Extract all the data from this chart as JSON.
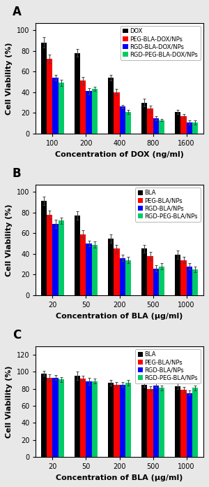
{
  "panel_A": {
    "letter": "A",
    "xlabel": "Concentration of DOX (ng/ml)",
    "ylabel": "Cell Viability (%)",
    "categories": [
      "100",
      "200",
      "400",
      "800",
      "1600"
    ],
    "ylim": [
      0,
      107
    ],
    "yticks": [
      0,
      20,
      40,
      60,
      80,
      100
    ],
    "legend_labels": [
      "DOX",
      "PEG-BLA-DOX/NPs",
      "RGD-BLA-DOX/NPs",
      "RGD-PEG-BLA-DOX/NPs"
    ],
    "colors": [
      "#000000",
      "#ff0000",
      "#0000ff",
      "#00cc66"
    ],
    "values": [
      [
        88,
        78,
        54,
        30,
        21
      ],
      [
        72,
        51,
        40,
        24,
        17
      ],
      [
        54,
        41,
        26,
        15,
        11
      ],
      [
        49,
        43,
        21,
        13,
        11
      ]
    ],
    "errors": [
      [
        5,
        4,
        3,
        4,
        2
      ],
      [
        4,
        4,
        3,
        3,
        2
      ],
      [
        3,
        3,
        2,
        2,
        2
      ],
      [
        3,
        2,
        2,
        1,
        2
      ]
    ]
  },
  "panel_B": {
    "letter": "B",
    "xlabel": "Concentration of BLA (μg/ml)",
    "ylabel": "Cell Viability (%)",
    "categories": [
      "20",
      "50",
      "200",
      "500",
      "1000"
    ],
    "ylim": [
      0,
      107
    ],
    "yticks": [
      0,
      20,
      40,
      60,
      80,
      100
    ],
    "legend_labels": [
      "BLA",
      "PEG-BLA/NPs",
      "RGD-BLA/NPs",
      "RGD-PEG-BLA/NPs"
    ],
    "colors": [
      "#000000",
      "#ff0000",
      "#0000ff",
      "#00cc66"
    ],
    "values": [
      [
        91,
        77,
        55,
        45,
        39
      ],
      [
        78,
        59,
        45,
        38,
        34
      ],
      [
        69,
        50,
        36,
        26,
        28
      ],
      [
        72,
        49,
        34,
        28,
        25
      ]
    ],
    "errors": [
      [
        4,
        4,
        4,
        4,
        4
      ],
      [
        4,
        4,
        4,
        4,
        3
      ],
      [
        4,
        3,
        3,
        3,
        3
      ],
      [
        3,
        3,
        3,
        3,
        3
      ]
    ]
  },
  "panel_C": {
    "letter": "C",
    "xlabel": "Concentration of BLA (μg/ml)",
    "ylabel": "Cell Viability (%)",
    "categories": [
      "20",
      "50",
      "200",
      "500",
      "1000"
    ],
    "ylim": [
      0,
      130
    ],
    "yticks": [
      0,
      20,
      40,
      60,
      80,
      100,
      120
    ],
    "legend_labels": [
      "BLA",
      "PEG-BLA/NPs",
      "RGD-BLA/NPs",
      "RGD-PEG-BLA/NPs"
    ],
    "colors": [
      "#000000",
      "#ff0000",
      "#0000ff",
      "#00cc66"
    ],
    "values": [
      [
        98,
        95,
        87,
        85,
        83
      ],
      [
        93,
        92,
        85,
        80,
        79
      ],
      [
        93,
        89,
        85,
        84,
        75
      ],
      [
        91,
        89,
        87,
        81,
        81
      ]
    ],
    "errors": [
      [
        3,
        5,
        3,
        3,
        3
      ],
      [
        4,
        3,
        3,
        3,
        3
      ],
      [
        3,
        4,
        3,
        3,
        3
      ],
      [
        3,
        3,
        3,
        3,
        3
      ]
    ]
  },
  "fig_width": 3.0,
  "fig_height": 6.96,
  "dpi": 100,
  "bg_color": "#e8e8e8"
}
